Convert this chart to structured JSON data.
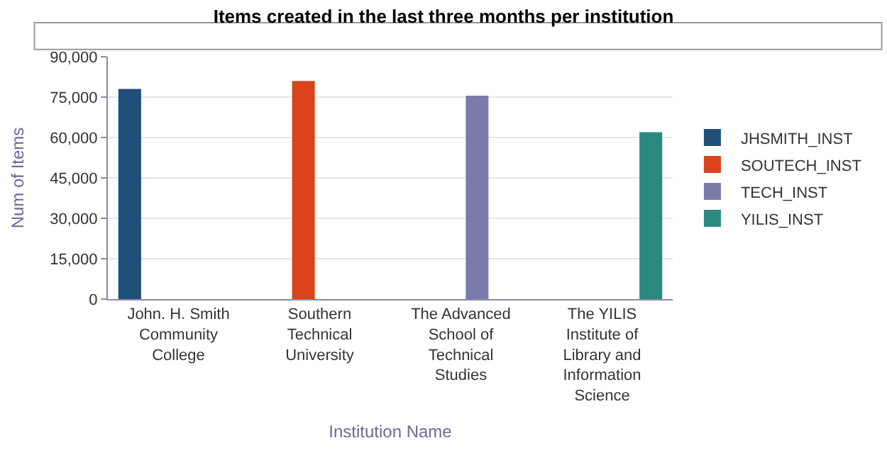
{
  "chart_data": {
    "type": "bar",
    "title": "Items created in the last three months per institution",
    "xlabel": "Institution Name",
    "ylabel": "Num of Items",
    "categories": [
      "John. H. Smith Community College",
      "Southern Technical University",
      "The Advanced School of Technical Studies",
      "The YILIS Institute of Library and Information Science"
    ],
    "series": [
      {
        "name": "JHSMITH_INST",
        "color": "#1f4e79",
        "values": [
          78000,
          null,
          null,
          null
        ]
      },
      {
        "name": "SOUTECH_INST",
        "color": "#d9441a",
        "values": [
          null,
          81000,
          null,
          null
        ]
      },
      {
        "name": "TECH_INST",
        "color": "#7b7bab",
        "values": [
          null,
          null,
          75500,
          null
        ]
      },
      {
        "name": "YILIS_INST",
        "color": "#2a8a80",
        "values": [
          null,
          null,
          null,
          62000
        ]
      }
    ],
    "ylim": [
      0,
      90000
    ],
    "yticks": [
      {
        "value": 0,
        "label": "0"
      },
      {
        "value": 15000,
        "label": "15,000"
      },
      {
        "value": 30000,
        "label": "30,000"
      },
      {
        "value": 45000,
        "label": "45,000"
      },
      {
        "value": 60000,
        "label": "60,000"
      },
      {
        "value": 75000,
        "label": "75,000"
      },
      {
        "value": 90000,
        "label": "90,000"
      }
    ],
    "grid": "y",
    "legend": "right"
  }
}
